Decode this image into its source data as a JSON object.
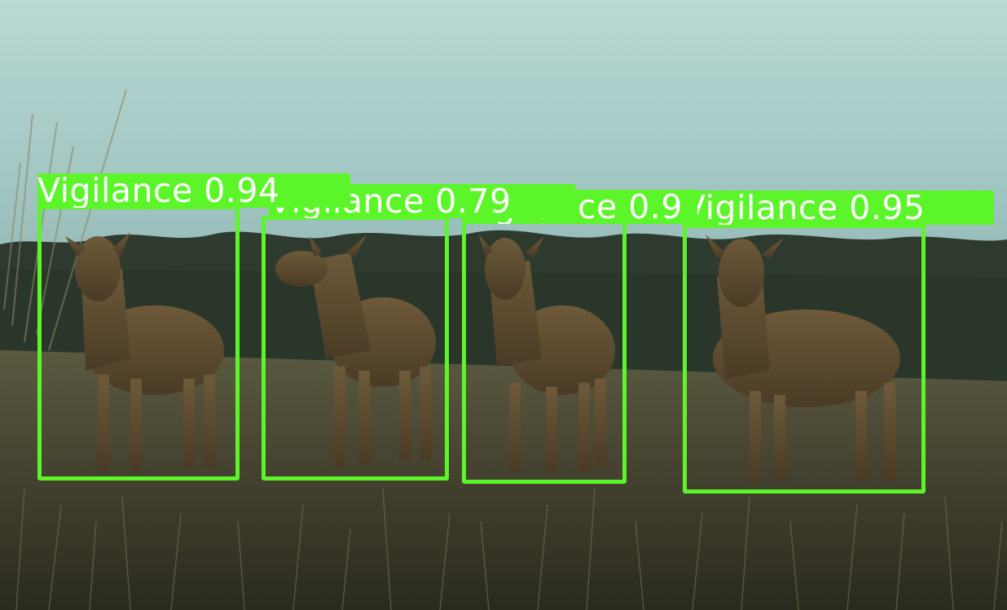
{
  "image": {
    "subject": "four red deer in a grassy field",
    "box_color": "#5cf52a",
    "label_text_color": "#ffffff"
  },
  "detections": [
    {
      "class_label": "Vigilance",
      "confidence": "0.94"
    },
    {
      "class_label": "Vigilance",
      "confidence": "0.79"
    },
    {
      "class_label": "Vigilance",
      "confidence": "0.9"
    },
    {
      "class_label": "Vigilance",
      "confidence": "0.95"
    }
  ]
}
